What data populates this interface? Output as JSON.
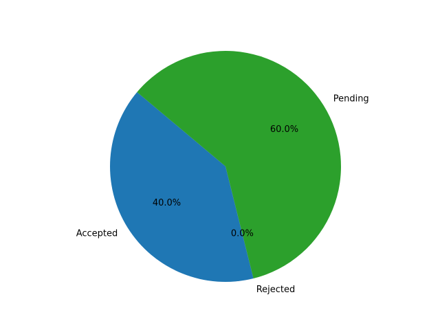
{
  "chart_data": {
    "type": "pie",
    "title": "",
    "start_angle_deg": 140,
    "direction": "counterclockwise",
    "slices": [
      {
        "label": "Accepted",
        "value": 40,
        "pct_label": "40.0%",
        "color": "#1f77b4"
      },
      {
        "label": "Rejected",
        "value": 0,
        "pct_label": "0.0%",
        "color": "#ff7f0e"
      },
      {
        "label": "Pending",
        "value": 60,
        "pct_label": "60.0%",
        "color": "#2ca02c"
      }
    ]
  }
}
